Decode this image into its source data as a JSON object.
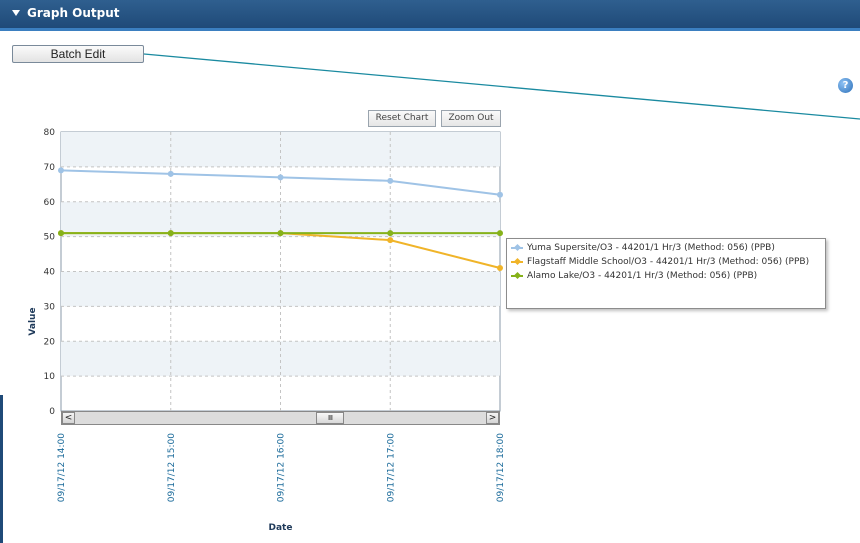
{
  "panel": {
    "title": "Graph Output"
  },
  "toolbar": {
    "batch_edit_label": "Batch Edit"
  },
  "chart_controls": {
    "reset_label": "Reset Chart",
    "zoom_out_label": "Zoom Out"
  },
  "colors": {
    "header": "#1f4a78",
    "yuma": "#9fc3e6",
    "flagstaff": "#f0b429",
    "alamo": "#86b21a",
    "plot_band": "#eef3f7",
    "connector_line": "#1a8aa0"
  },
  "chart_data": {
    "type": "line",
    "xlabel": "Date",
    "ylabel": "Value",
    "ylim": [
      0,
      80
    ],
    "yticks": [
      0,
      10,
      20,
      30,
      40,
      50,
      60,
      70,
      80
    ],
    "grid": true,
    "legend_position": "right",
    "x": [
      "09/17/12 14:00",
      "09/17/12 15:00",
      "09/17/12 16:00",
      "09/17/12 17:00",
      "09/17/12 18:00"
    ],
    "series": [
      {
        "name": "Yuma Supersite/O3 - 44201/1 Hr/3 (Method: 056) (PPB)",
        "values": [
          69,
          68,
          67,
          66,
          62
        ]
      },
      {
        "name": "Flagstaff Middle School/O3 - 44201/1 Hr/3 (Method: 056) (PPB)",
        "values": [
          51,
          51,
          51,
          49,
          41
        ]
      },
      {
        "name": "Alamo Lake/O3 - 44201/1 Hr/3 (Method: 056) (PPB)",
        "values": [
          51,
          51,
          51,
          51,
          51
        ]
      }
    ]
  }
}
